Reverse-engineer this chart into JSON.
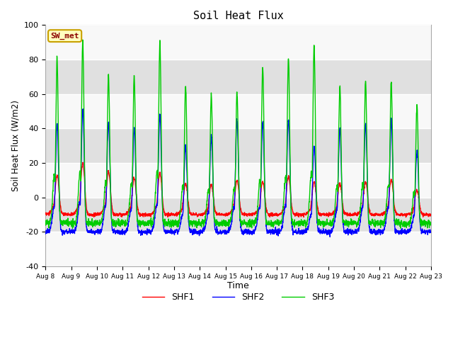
{
  "title": "Soil Heat Flux",
  "xlabel": "Time",
  "ylabel": "Soil Heat Flux (W/m2)",
  "ylim": [
    -40,
    100
  ],
  "yticks": [
    -40,
    -20,
    0,
    20,
    40,
    60,
    80,
    100
  ],
  "colors": {
    "SHF1": "#FF0000",
    "SHF2": "#0000FF",
    "SHF3": "#00CC00"
  },
  "legend_label": "SW_met",
  "legend_box_facecolor": "#FFFFC0",
  "legend_box_edgecolor": "#C8A000",
  "legend_text_color": "#8B0000",
  "fig_facecolor": "#FFFFFF",
  "plot_facecolor": "#E8E8E8",
  "n_days": 15,
  "start_day": 8,
  "points_per_day": 144,
  "shf1_peaks": [
    13,
    20,
    15,
    11,
    14,
    8,
    7,
    10,
    9,
    12,
    9,
    8,
    9,
    10,
    4
  ],
  "shf2_peaks": [
    43,
    51,
    44,
    40,
    48,
    30,
    35,
    44,
    44,
    45,
    30,
    40,
    43,
    44,
    27
  ],
  "shf3_peaks": [
    81,
    91,
    71,
    70,
    90,
    65,
    59,
    61,
    76,
    80,
    88,
    65,
    68,
    67,
    54
  ],
  "shf1_min": -10,
  "shf2_min": -20,
  "shf3_min": -15,
  "grid_colors": [
    "#F8F8F8",
    "#E0E0E0"
  ]
}
